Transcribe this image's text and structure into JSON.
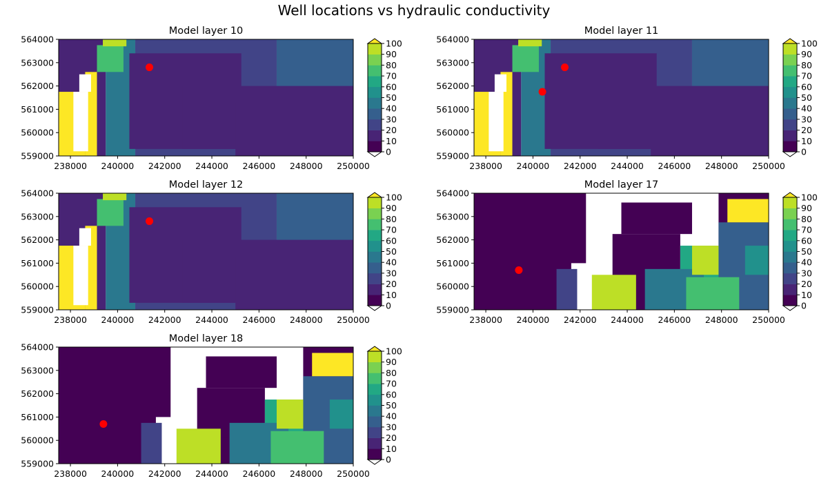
{
  "figure": {
    "title": "Well locations vs hydraulic conductivity"
  },
  "colors": {
    "viridis": [
      "#440154",
      "#482475",
      "#414487",
      "#355f8d",
      "#2a788e",
      "#21918c",
      "#22a884",
      "#44bf70",
      "#7ad151",
      "#bddf26",
      "#fde725"
    ],
    "well": "#ff0000",
    "nodata": "#ffffff"
  },
  "chart_data": [
    {
      "type": "heatmap",
      "title": "Model layer 10",
      "xlim": [
        237500,
        250000
      ],
      "ylim": [
        559000,
        564000
      ],
      "xticks": [
        "238000",
        "240000",
        "242000",
        "244000",
        "246000",
        "248000",
        "250000"
      ],
      "yticks": [
        "559000",
        "560000",
        "561000",
        "562000",
        "563000",
        "564000"
      ],
      "colorbar": {
        "levels": [
          "0",
          "10",
          "20",
          "30",
          "40",
          "50",
          "60",
          "70",
          "80",
          "90",
          "100"
        ],
        "extend": "both"
      },
      "wells": [
        {
          "x": 241350,
          "y": 562800
        }
      ],
      "pattern": "upper"
    },
    {
      "type": "heatmap",
      "title": "Model layer 11",
      "xlim": [
        237500,
        250000
      ],
      "ylim": [
        559000,
        564000
      ],
      "xticks": [
        "238000",
        "240000",
        "242000",
        "244000",
        "246000",
        "248000",
        "250000"
      ],
      "yticks": [
        "559000",
        "560000",
        "561000",
        "562000",
        "563000",
        "564000"
      ],
      "colorbar": {
        "levels": [
          "0",
          "10",
          "20",
          "30",
          "40",
          "50",
          "60",
          "70",
          "80",
          "90",
          "100"
        ],
        "extend": "both"
      },
      "wells": [
        {
          "x": 241350,
          "y": 562800
        },
        {
          "x": 240400,
          "y": 561750
        }
      ],
      "pattern": "upper"
    },
    {
      "type": "heatmap",
      "title": "Model layer 12",
      "xlim": [
        237500,
        250000
      ],
      "ylim": [
        559000,
        564000
      ],
      "xticks": [
        "238000",
        "240000",
        "242000",
        "244000",
        "246000",
        "248000",
        "250000"
      ],
      "yticks": [
        "559000",
        "560000",
        "561000",
        "562000",
        "563000",
        "564000"
      ],
      "colorbar": {
        "levels": [
          "0",
          "10",
          "20",
          "30",
          "40",
          "50",
          "60",
          "70",
          "80",
          "90",
          "100"
        ],
        "extend": "both"
      },
      "wells": [
        {
          "x": 241350,
          "y": 562800
        }
      ],
      "pattern": "upper"
    },
    {
      "type": "heatmap",
      "title": "Model layer 17",
      "xlim": [
        237500,
        250000
      ],
      "ylim": [
        559000,
        564000
      ],
      "xticks": [
        "238000",
        "240000",
        "242000",
        "244000",
        "246000",
        "248000",
        "250000"
      ],
      "yticks": [
        "559000",
        "560000",
        "561000",
        "562000",
        "563000",
        "564000"
      ],
      "colorbar": {
        "levels": [
          "0",
          "10",
          "20",
          "30",
          "40",
          "50",
          "60",
          "70",
          "80",
          "90",
          "100"
        ],
        "extend": "both"
      },
      "wells": [
        {
          "x": 239400,
          "y": 560700
        }
      ],
      "pattern": "lower"
    },
    {
      "type": "heatmap",
      "title": "Model layer 18",
      "xlim": [
        237500,
        250000
      ],
      "ylim": [
        559000,
        564000
      ],
      "xticks": [
        "238000",
        "240000",
        "242000",
        "244000",
        "246000",
        "248000",
        "250000"
      ],
      "yticks": [
        "559000",
        "560000",
        "561000",
        "562000",
        "563000",
        "564000"
      ],
      "colorbar": {
        "levels": [
          "0",
          "10",
          "20",
          "30",
          "40",
          "50",
          "60",
          "70",
          "80",
          "90",
          "100"
        ],
        "extend": "both"
      },
      "wells": [
        {
          "x": 239400,
          "y": 560700
        }
      ],
      "pattern": "lower"
    }
  ]
}
